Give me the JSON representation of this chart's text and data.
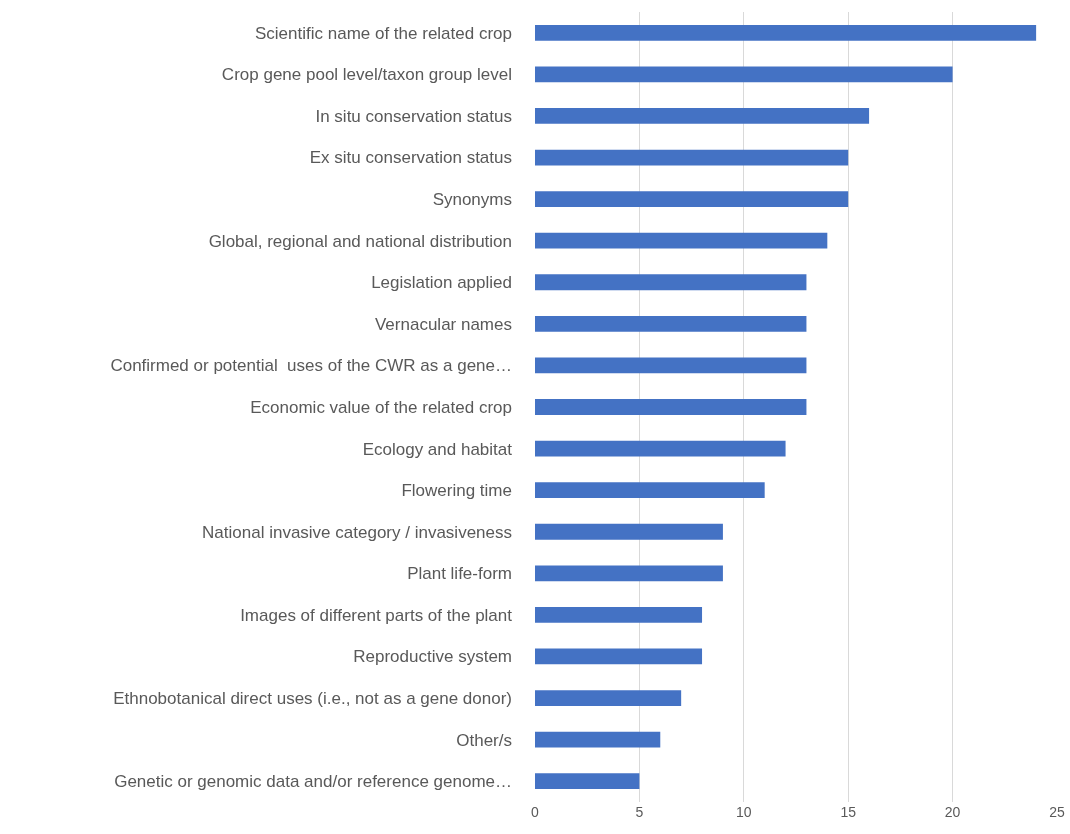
{
  "chart_data": {
    "type": "bar",
    "orientation": "horizontal",
    "categories": [
      "Scientific name of the related crop",
      "Crop gene pool level/taxon group level",
      "In situ conservation status",
      "Ex situ conservation status",
      "Synonyms",
      "Global, regional and national distribution",
      "Legislation applied",
      "Vernacular names",
      "Confirmed or potential  uses of the CWR as a gene…",
      "Economic value of the related crop",
      "Ecology and habitat",
      "Flowering time",
      "National invasive category / invasiveness",
      "Plant life-form",
      "Images of different parts of the plant",
      "Reproductive system",
      "Ethnobotanical direct uses (i.e., not as a gene donor)",
      "Other/s",
      "Genetic or genomic data and/or reference genome…"
    ],
    "values": [
      24,
      20,
      16,
      15,
      15,
      14,
      13,
      13,
      13,
      13,
      12,
      11,
      9,
      9,
      8,
      8,
      7,
      6,
      5
    ],
    "color": "#4472c4",
    "xlim": [
      0,
      25
    ],
    "xticks": [
      0,
      5,
      10,
      15,
      20,
      25
    ],
    "grid": "x"
  }
}
